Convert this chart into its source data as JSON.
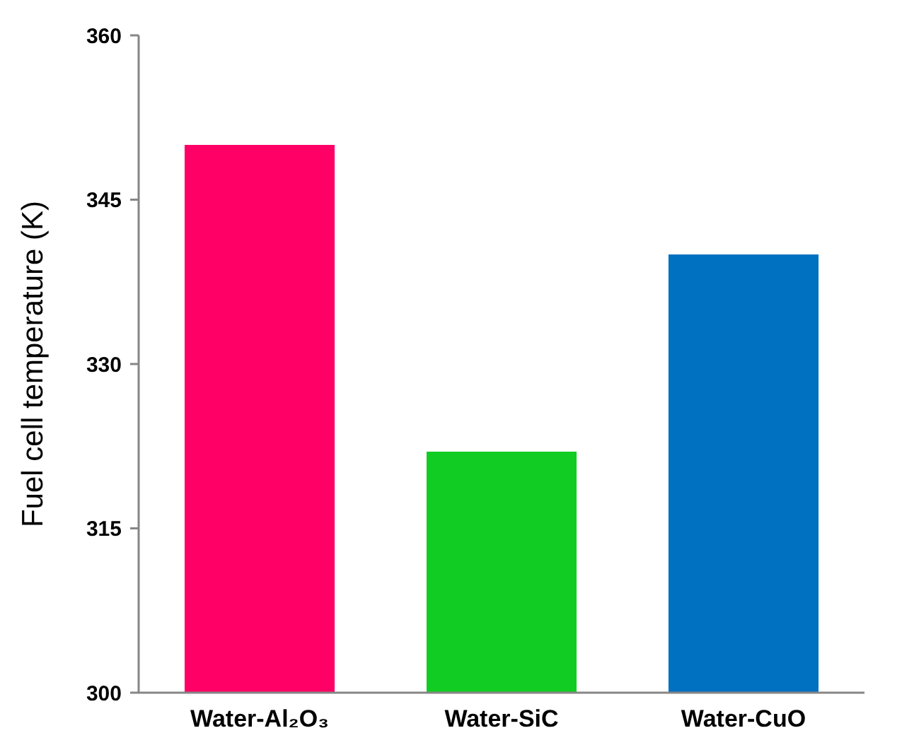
{
  "chart_data": {
    "type": "bar",
    "ylabel": "Fuel cell temperature (K)",
    "categories": [
      "Water-Al₂O₃",
      "Water-SiC",
      "Water-CuO"
    ],
    "values": [
      350,
      322,
      340
    ],
    "colors": [
      "#ff0066",
      "#11cc22",
      "#0070c0"
    ],
    "ylim": [
      300,
      360
    ],
    "yticks": [
      300,
      315,
      330,
      345,
      360
    ],
    "grid": false
  }
}
